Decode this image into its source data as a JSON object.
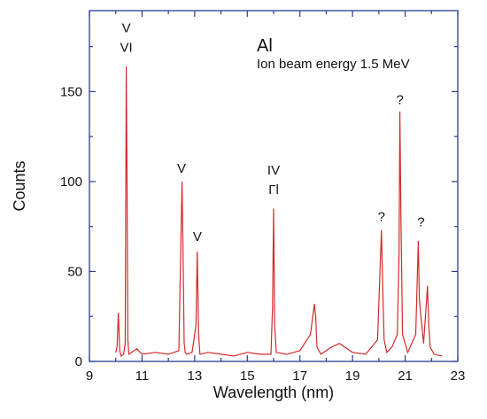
{
  "chart_data": {
    "type": "line",
    "title": "Al",
    "subtitle": "Ion beam energy 1.5 MeV",
    "xlabel": "Wavelength (nm)",
    "ylabel": "Counts",
    "xlim": [
      9,
      23
    ],
    "ylim": [
      0,
      195
    ],
    "x_ticks": [
      9,
      11,
      13,
      15,
      17,
      19,
      21,
      23
    ],
    "y_ticks": [
      0,
      50,
      100,
      150
    ],
    "series_color": "#d42a2a",
    "series": [
      {
        "x": [
          10.0,
          10.05,
          10.1,
          10.15,
          10.2,
          10.3,
          10.36,
          10.4,
          10.43,
          10.46,
          10.5,
          10.6,
          10.8,
          11.0,
          11.5,
          12.0,
          12.4,
          12.52,
          12.56,
          12.6,
          12.64,
          12.7,
          12.9,
          13.05,
          13.1,
          13.15,
          13.2,
          13.5,
          14.0,
          14.5,
          15.0,
          15.5,
          15.9,
          15.96,
          16.0,
          16.04,
          16.1,
          16.5,
          17.0,
          17.4,
          17.55,
          17.6,
          17.65,
          17.8,
          18.2,
          18.5,
          19.0,
          19.5,
          19.95,
          20.1,
          20.15,
          20.2,
          20.3,
          20.5,
          20.7,
          20.77,
          20.8,
          20.84,
          20.9,
          21.1,
          21.4,
          21.5,
          21.54,
          21.6,
          21.7,
          21.85,
          21.9,
          21.95,
          22.1,
          22.4
        ],
        "y": [
          5,
          8,
          27,
          6,
          3,
          4,
          10,
          164,
          100,
          12,
          4,
          5,
          7,
          4,
          5,
          4,
          6,
          100,
          58,
          10,
          5,
          4,
          5,
          20,
          61,
          15,
          4,
          5,
          4,
          3,
          5,
          4,
          4,
          30,
          85,
          20,
          5,
          4,
          6,
          15,
          32,
          25,
          8,
          4,
          8,
          10,
          5,
          4,
          12,
          73,
          40,
          12,
          5,
          8,
          15,
          60,
          139,
          80,
          15,
          5,
          15,
          67,
          35,
          25,
          10,
          42,
          20,
          8,
          4,
          3
        ]
      }
    ],
    "annotations": [
      {
        "text": "V",
        "x": 10.4,
        "y": 183
      },
      {
        "text": "VI",
        "x": 10.4,
        "y": 172
      },
      {
        "text": "V",
        "x": 12.5,
        "y": 105
      },
      {
        "text": "V",
        "x": 13.1,
        "y": 67
      },
      {
        "text": "IV",
        "x": 16.0,
        "y": 104
      },
      {
        "text": "Γl",
        "x": 16.0,
        "y": 93
      },
      {
        "text": "?",
        "x": 20.1,
        "y": 78
      },
      {
        "text": "?",
        "x": 20.8,
        "y": 143
      },
      {
        "text": "?",
        "x": 21.6,
        "y": 75
      }
    ]
  }
}
